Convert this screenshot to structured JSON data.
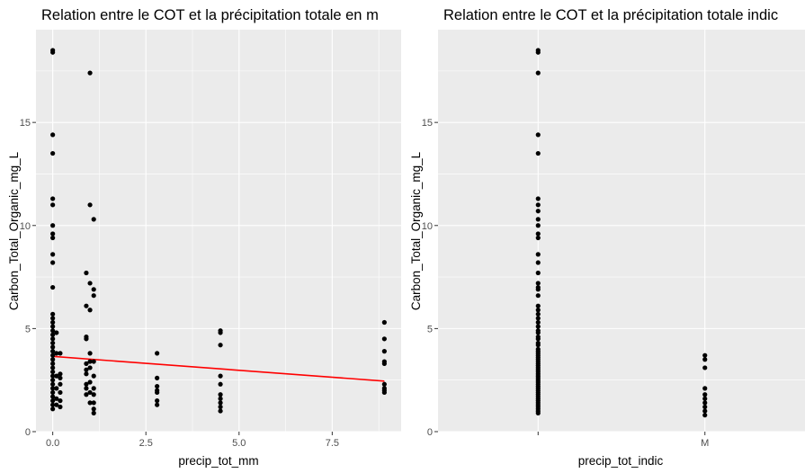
{
  "chart_data": [
    {
      "type": "scatter",
      "title": "Relation entre le COT et la précipitation totale en m",
      "xlabel": "precip_tot_mm",
      "ylabel": "Carbon_Total_Organic_mg_L",
      "xlim": [
        -0.45,
        9.35
      ],
      "ylim": [
        0,
        19.5
      ],
      "x_ticks": [
        0,
        2.5,
        5,
        7.5
      ],
      "x_tick_labels": [
        "0.0",
        "2.5",
        "5.0",
        "7.5"
      ],
      "y_ticks": [
        0,
        5,
        10,
        15
      ],
      "y_tick_labels": [
        "0",
        "5",
        "10",
        "15"
      ],
      "grid": true,
      "trend_line": {
        "color": "#ff0000",
        "x": [
          0,
          8.9
        ],
        "y": [
          3.65,
          2.45
        ]
      },
      "points": [
        [
          0,
          18.5
        ],
        [
          0,
          18.4
        ],
        [
          0,
          14.4
        ],
        [
          0,
          13.5
        ],
        [
          0,
          11.3
        ],
        [
          0,
          11.0
        ],
        [
          0,
          10.0
        ],
        [
          0,
          9.6
        ],
        [
          0,
          9.4
        ],
        [
          0,
          8.6
        ],
        [
          0,
          8.2
        ],
        [
          0,
          7.0
        ],
        [
          0,
          5.7
        ],
        [
          0,
          5.5
        ],
        [
          0,
          5.3
        ],
        [
          0,
          5.1
        ],
        [
          0,
          4.9
        ],
        [
          0,
          4.7
        ],
        [
          0,
          4.5
        ],
        [
          0,
          4.3
        ],
        [
          0,
          4.1
        ],
        [
          0,
          3.9
        ],
        [
          0,
          3.7
        ],
        [
          0,
          3.5
        ],
        [
          0,
          3.3
        ],
        [
          0,
          3.1
        ],
        [
          0,
          2.9
        ],
        [
          0,
          2.7
        ],
        [
          0,
          2.5
        ],
        [
          0,
          2.3
        ],
        [
          0,
          2.1
        ],
        [
          0,
          1.9
        ],
        [
          0,
          1.7
        ],
        [
          0,
          1.5
        ],
        [
          0,
          1.3
        ],
        [
          0,
          1.1
        ],
        [
          0.1,
          4.8
        ],
        [
          0.1,
          3.8
        ],
        [
          0.1,
          2.7
        ],
        [
          0.1,
          2.1
        ],
        [
          0.1,
          1.6
        ],
        [
          0.1,
          1.3
        ],
        [
          0.2,
          3.8
        ],
        [
          0.2,
          2.8
        ],
        [
          0.2,
          2.6
        ],
        [
          0.2,
          2.3
        ],
        [
          0.2,
          1.9
        ],
        [
          0.2,
          1.5
        ],
        [
          0.2,
          1.2
        ],
        [
          0.9,
          7.7
        ],
        [
          0.9,
          6.1
        ],
        [
          0.9,
          4.6
        ],
        [
          0.9,
          4.5
        ],
        [
          0.9,
          3.3
        ],
        [
          0.9,
          3.0
        ],
        [
          0.9,
          2.8
        ],
        [
          0.9,
          2.3
        ],
        [
          0.9,
          2.1
        ],
        [
          0.9,
          1.8
        ],
        [
          1.0,
          17.4
        ],
        [
          1.0,
          11.0
        ],
        [
          1.0,
          7.2
        ],
        [
          1.0,
          5.9
        ],
        [
          1.0,
          3.8
        ],
        [
          1.0,
          3.4
        ],
        [
          1.0,
          3.1
        ],
        [
          1.0,
          2.4
        ],
        [
          1.0,
          1.9
        ],
        [
          1.0,
          1.4
        ],
        [
          1.1,
          10.3
        ],
        [
          1.1,
          6.9
        ],
        [
          1.1,
          6.6
        ],
        [
          1.1,
          3.4
        ],
        [
          1.1,
          2.7
        ],
        [
          1.1,
          2.1
        ],
        [
          1.1,
          1.8
        ],
        [
          1.1,
          1.4
        ],
        [
          1.1,
          1.1
        ],
        [
          1.1,
          0.9
        ],
        [
          2.8,
          3.8
        ],
        [
          2.8,
          2.6
        ],
        [
          2.8,
          2.2
        ],
        [
          2.8,
          2.0
        ],
        [
          2.8,
          1.9
        ],
        [
          2.8,
          1.5
        ],
        [
          2.8,
          1.3
        ],
        [
          4.5,
          4.9
        ],
        [
          4.5,
          4.8
        ],
        [
          4.5,
          4.2
        ],
        [
          4.5,
          2.7
        ],
        [
          4.5,
          2.3
        ],
        [
          4.5,
          1.8
        ],
        [
          4.5,
          1.6
        ],
        [
          4.5,
          1.4
        ],
        [
          4.5,
          1.2
        ],
        [
          4.5,
          1.0
        ],
        [
          8.9,
          5.3
        ],
        [
          8.9,
          4.5
        ],
        [
          8.9,
          3.9
        ],
        [
          8.9,
          3.4
        ],
        [
          8.9,
          3.3
        ],
        [
          8.9,
          2.3
        ],
        [
          8.9,
          2.1
        ],
        [
          8.9,
          2.0
        ],
        [
          8.9,
          1.9
        ]
      ]
    },
    {
      "type": "scatter",
      "title": "Relation entre le COT et la précipitation totale indic",
      "xlabel": "precip_tot_indic",
      "ylabel": "Carbon_Total_Organic_mg_L",
      "categories": [
        "",
        "M"
      ],
      "ylim": [
        0,
        19.5
      ],
      "y_ticks": [
        0,
        5,
        10,
        15
      ],
      "y_tick_labels": [
        "0",
        "5",
        "10",
        "15"
      ],
      "grid": true,
      "points": [
        [
          "",
          18.5
        ],
        [
          "",
          18.4
        ],
        [
          "",
          17.4
        ],
        [
          "",
          14.4
        ],
        [
          "",
          13.5
        ],
        [
          "",
          11.3
        ],
        [
          "",
          11.0
        ],
        [
          "",
          10.7
        ],
        [
          "",
          10.3
        ],
        [
          "",
          10.0
        ],
        [
          "",
          9.6
        ],
        [
          "",
          9.4
        ],
        [
          "",
          8.6
        ],
        [
          "",
          8.2
        ],
        [
          "",
          7.7
        ],
        [
          "",
          7.2
        ],
        [
          "",
          7.0
        ],
        [
          "",
          6.9
        ],
        [
          "",
          6.6
        ],
        [
          "",
          6.1
        ],
        [
          "",
          5.9
        ],
        [
          "",
          5.7
        ],
        [
          "",
          5.5
        ],
        [
          "",
          5.3
        ],
        [
          "",
          5.1
        ],
        [
          "",
          4.9
        ],
        [
          "",
          4.8
        ],
        [
          "",
          4.6
        ],
        [
          "",
          4.5
        ],
        [
          "",
          4.3
        ],
        [
          "",
          4.2
        ],
        [
          "",
          4.0
        ],
        [
          "",
          3.9
        ],
        [
          "",
          3.8
        ],
        [
          "",
          3.7
        ],
        [
          "",
          3.6
        ],
        [
          "",
          3.5
        ],
        [
          "",
          3.4
        ],
        [
          "",
          3.3
        ],
        [
          "",
          3.2
        ],
        [
          "",
          3.1
        ],
        [
          "",
          3.0
        ],
        [
          "",
          2.9
        ],
        [
          "",
          2.8
        ],
        [
          "",
          2.7
        ],
        [
          "",
          2.6
        ],
        [
          "",
          2.5
        ],
        [
          "",
          2.4
        ],
        [
          "",
          2.3
        ],
        [
          "",
          2.2
        ],
        [
          "",
          2.1
        ],
        [
          "",
          2.0
        ],
        [
          "",
          1.9
        ],
        [
          "",
          1.8
        ],
        [
          "",
          1.7
        ],
        [
          "",
          1.6
        ],
        [
          "",
          1.5
        ],
        [
          "",
          1.4
        ],
        [
          "",
          1.3
        ],
        [
          "",
          1.2
        ],
        [
          "",
          1.1
        ],
        [
          "",
          1.0
        ],
        [
          "",
          0.9
        ],
        [
          "M",
          3.7
        ],
        [
          "M",
          3.5
        ],
        [
          "M",
          3.1
        ],
        [
          "M",
          2.1
        ],
        [
          "M",
          1.8
        ],
        [
          "M",
          1.6
        ],
        [
          "M",
          1.4
        ],
        [
          "M",
          1.2
        ],
        [
          "M",
          1.0
        ],
        [
          "M",
          0.8
        ]
      ]
    }
  ]
}
